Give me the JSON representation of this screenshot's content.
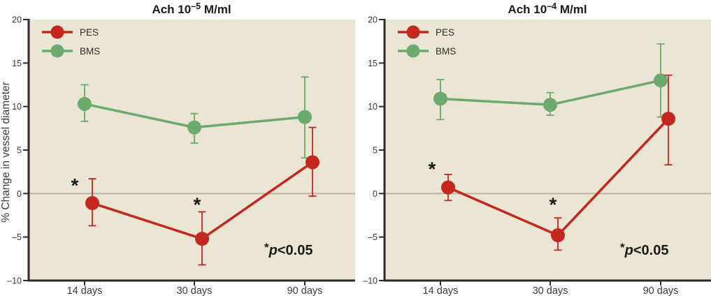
{
  "figure": {
    "ylabel": "% Change in vessel diameter",
    "legend_labels": [
      "PES",
      "BMS"
    ],
    "significance": {
      "star": "*",
      "p": "p",
      "comparison": "<0.05"
    },
    "colors": {
      "pes": "#c3271e",
      "bms": "#6caa6d",
      "plot_background": "#eae6d3",
      "axis": "#2d2c25",
      "zero_line": "#b9b5a8",
      "text": "#1a1a1a",
      "tick_text": "#3b3a33"
    }
  },
  "chart_data": [
    {
      "type": "line",
      "title": {
        "base": "Ach 10",
        "exponent": "–5",
        "suffix": " M/ml"
      },
      "categories": [
        "14 days",
        "30 days",
        "90 days"
      ],
      "xlabel": "",
      "ylabel": "% Change in vessel diameter",
      "ylim": [
        -10,
        20
      ],
      "yticks": [
        20,
        15,
        10,
        5,
        0,
        -5,
        -10
      ],
      "grid": "zero-line-only",
      "legend_position": "top-left-inside",
      "series": [
        {
          "name": "PES",
          "color": "#c3271e",
          "values": [
            -1.1,
            -5.2,
            3.6
          ],
          "err_low": [
            -3.7,
            -8.2,
            -0.3
          ],
          "err_high": [
            1.7,
            -2.1,
            7.6
          ]
        },
        {
          "name": "BMS",
          "color": "#6caa6d",
          "values": [
            10.3,
            7.6,
            8.8
          ],
          "err_low": [
            8.3,
            5.8,
            4.1
          ],
          "err_high": [
            12.5,
            9.2,
            13.4
          ]
        }
      ],
      "asterisks": [
        {
          "cat": 0,
          "dx": -14,
          "y": 0.9
        },
        {
          "cat": 1,
          "dx": 4,
          "y": -1.3
        }
      ],
      "annotation": "*p<0.05"
    },
    {
      "type": "line",
      "title": {
        "base": "Ach 10",
        "exponent": "–4",
        "suffix": " M/ml"
      },
      "categories": [
        "14 days",
        "30 days",
        "90 days"
      ],
      "xlabel": "",
      "ylabel": "% Change in vessel diameter",
      "ylim": [
        -10,
        20
      ],
      "yticks": [
        20,
        15,
        10,
        5,
        0,
        -5,
        -10
      ],
      "grid": "zero-line-only",
      "legend_position": "top-left-inside",
      "series": [
        {
          "name": "PES",
          "color": "#c3271e",
          "values": [
            0.7,
            -4.8,
            8.6
          ],
          "err_low": [
            -0.8,
            -6.5,
            3.3
          ],
          "err_high": [
            2.2,
            -2.8,
            13.6
          ]
        },
        {
          "name": "BMS",
          "color": "#6caa6d",
          "values": [
            10.9,
            10.2,
            13.0
          ],
          "err_low": [
            8.5,
            9.0,
            8.8
          ],
          "err_high": [
            13.1,
            11.6,
            17.2
          ]
        }
      ],
      "asterisks": [
        {
          "cat": 0,
          "dx": -12,
          "y": 2.8
        },
        {
          "cat": 1,
          "dx": 4,
          "y": -1.3
        }
      ],
      "annotation": "*p<0.05"
    }
  ]
}
